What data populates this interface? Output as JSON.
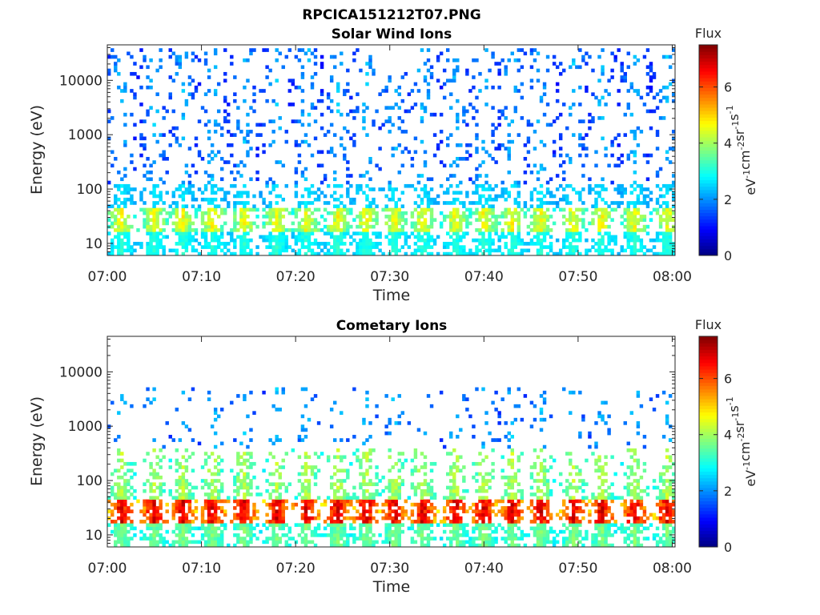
{
  "figure_title": "RPCICA151212T07.PNG",
  "colorbar_label": "Flux",
  "colorbar_unit_parts": [
    "eV",
    "-1",
    "cm",
    "-2",
    "sr",
    "-1",
    "s",
    "-1"
  ],
  "colormap": "jet",
  "chart_data": [
    {
      "type": "heatmap",
      "title": "Solar Wind Ions",
      "xlabel": "Time",
      "ylabel": "Energy (eV)",
      "xticks": [
        "07:00",
        "07:10",
        "07:20",
        "07:30",
        "07:40",
        "07:50",
        "08:00"
      ],
      "xlim_minutes": [
        0,
        60.3
      ],
      "yticks": [
        10,
        100,
        1000,
        10000
      ],
      "ylim": [
        6,
        45000
      ],
      "yscale": "log",
      "clim": [
        0,
        7.5
      ],
      "cticks": [
        0,
        2,
        4,
        6
      ],
      "peak_time_minutes": [
        1.5,
        5,
        8,
        11.2,
        14.5,
        18,
        21.2,
        24.5,
        27.5,
        30.5,
        33.5,
        37,
        40,
        43,
        46,
        49.5,
        52.5,
        56,
        59.5
      ],
      "bands": [
        {
          "emin": 6,
          "emax": 16,
          "flux_min": 2.2,
          "flux_max": 3.3
        },
        {
          "emin": 16,
          "emax": 45,
          "flux_min": 2.6,
          "flux_max": 5.0
        },
        {
          "emin": 45,
          "emax": 130,
          "flux_min": 2.0,
          "flux_max": 2.8
        },
        {
          "emin": 130,
          "emax": 40000,
          "flux_min": 0.9,
          "flux_max": 2.6
        }
      ]
    },
    {
      "type": "heatmap",
      "title": "Cometary Ions",
      "xlabel": "Time",
      "ylabel": "Energy (eV)",
      "xticks": [
        "07:00",
        "07:10",
        "07:20",
        "07:30",
        "07:40",
        "07:50",
        "08:00"
      ],
      "xlim_minutes": [
        0,
        60.3
      ],
      "yticks": [
        10,
        100,
        1000,
        10000
      ],
      "ylim": [
        6,
        45000
      ],
      "yscale": "log",
      "clim": [
        0,
        7.5
      ],
      "cticks": [
        0,
        2,
        4,
        6
      ],
      "peak_time_minutes": [
        1.5,
        5,
        8,
        11.2,
        14.5,
        18,
        21.2,
        24.5,
        27.5,
        30.5,
        33.5,
        37,
        40,
        43,
        46,
        49.5,
        52.5,
        56,
        59.5
      ],
      "bands": [
        {
          "emin": 6,
          "emax": 16,
          "flux_min": 2.5,
          "flux_max": 4.0
        },
        {
          "emin": 16,
          "emax": 45,
          "flux_min": 4.5,
          "flux_max": 7.3
        },
        {
          "emin": 45,
          "emax": 400,
          "flux_min": 2.5,
          "flux_max": 4.5
        },
        {
          "emin": 400,
          "emax": 5000,
          "flux_min": 1.0,
          "flux_max": 2.6
        }
      ]
    }
  ]
}
